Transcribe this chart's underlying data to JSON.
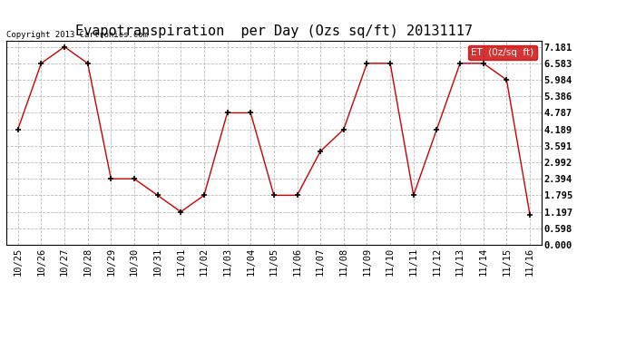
{
  "title": "Evapotranspiration  per Day (Ozs sq/ft) 20131117",
  "copyright": "Copyright 2013 Cartronics.com",
  "legend_label": "ET  (0z/sq  ft)",
  "x_labels": [
    "10/25",
    "10/26",
    "10/27",
    "10/28",
    "10/29",
    "10/30",
    "10/31",
    "11/01",
    "11/02",
    "11/03",
    "11/04",
    "11/05",
    "11/06",
    "11/07",
    "11/08",
    "11/09",
    "11/10",
    "11/11",
    "11/12",
    "11/13",
    "11/14",
    "11/15",
    "11/16"
  ],
  "y_values": [
    4.189,
    6.583,
    7.181,
    6.583,
    2.394,
    2.394,
    1.795,
    1.197,
    1.795,
    4.787,
    4.787,
    1.795,
    1.795,
    3.392,
    4.189,
    6.583,
    6.583,
    1.795,
    4.189,
    6.583,
    6.583,
    5.984,
    1.096
  ],
  "y_ticks": [
    0.0,
    0.598,
    1.197,
    1.795,
    2.394,
    2.992,
    3.591,
    4.189,
    4.787,
    5.386,
    5.984,
    6.583,
    7.181
  ],
  "line_color": "#cc0000",
  "marker_color": "#000000",
  "background_color": "#ffffff",
  "grid_color": "#bbbbbb",
  "title_fontsize": 11,
  "tick_fontsize": 7.5,
  "copyright_fontsize": 6.5,
  "legend_bg": "#cc0000",
  "legend_text_color": "#ffffff",
  "legend_fontsize": 7.5
}
